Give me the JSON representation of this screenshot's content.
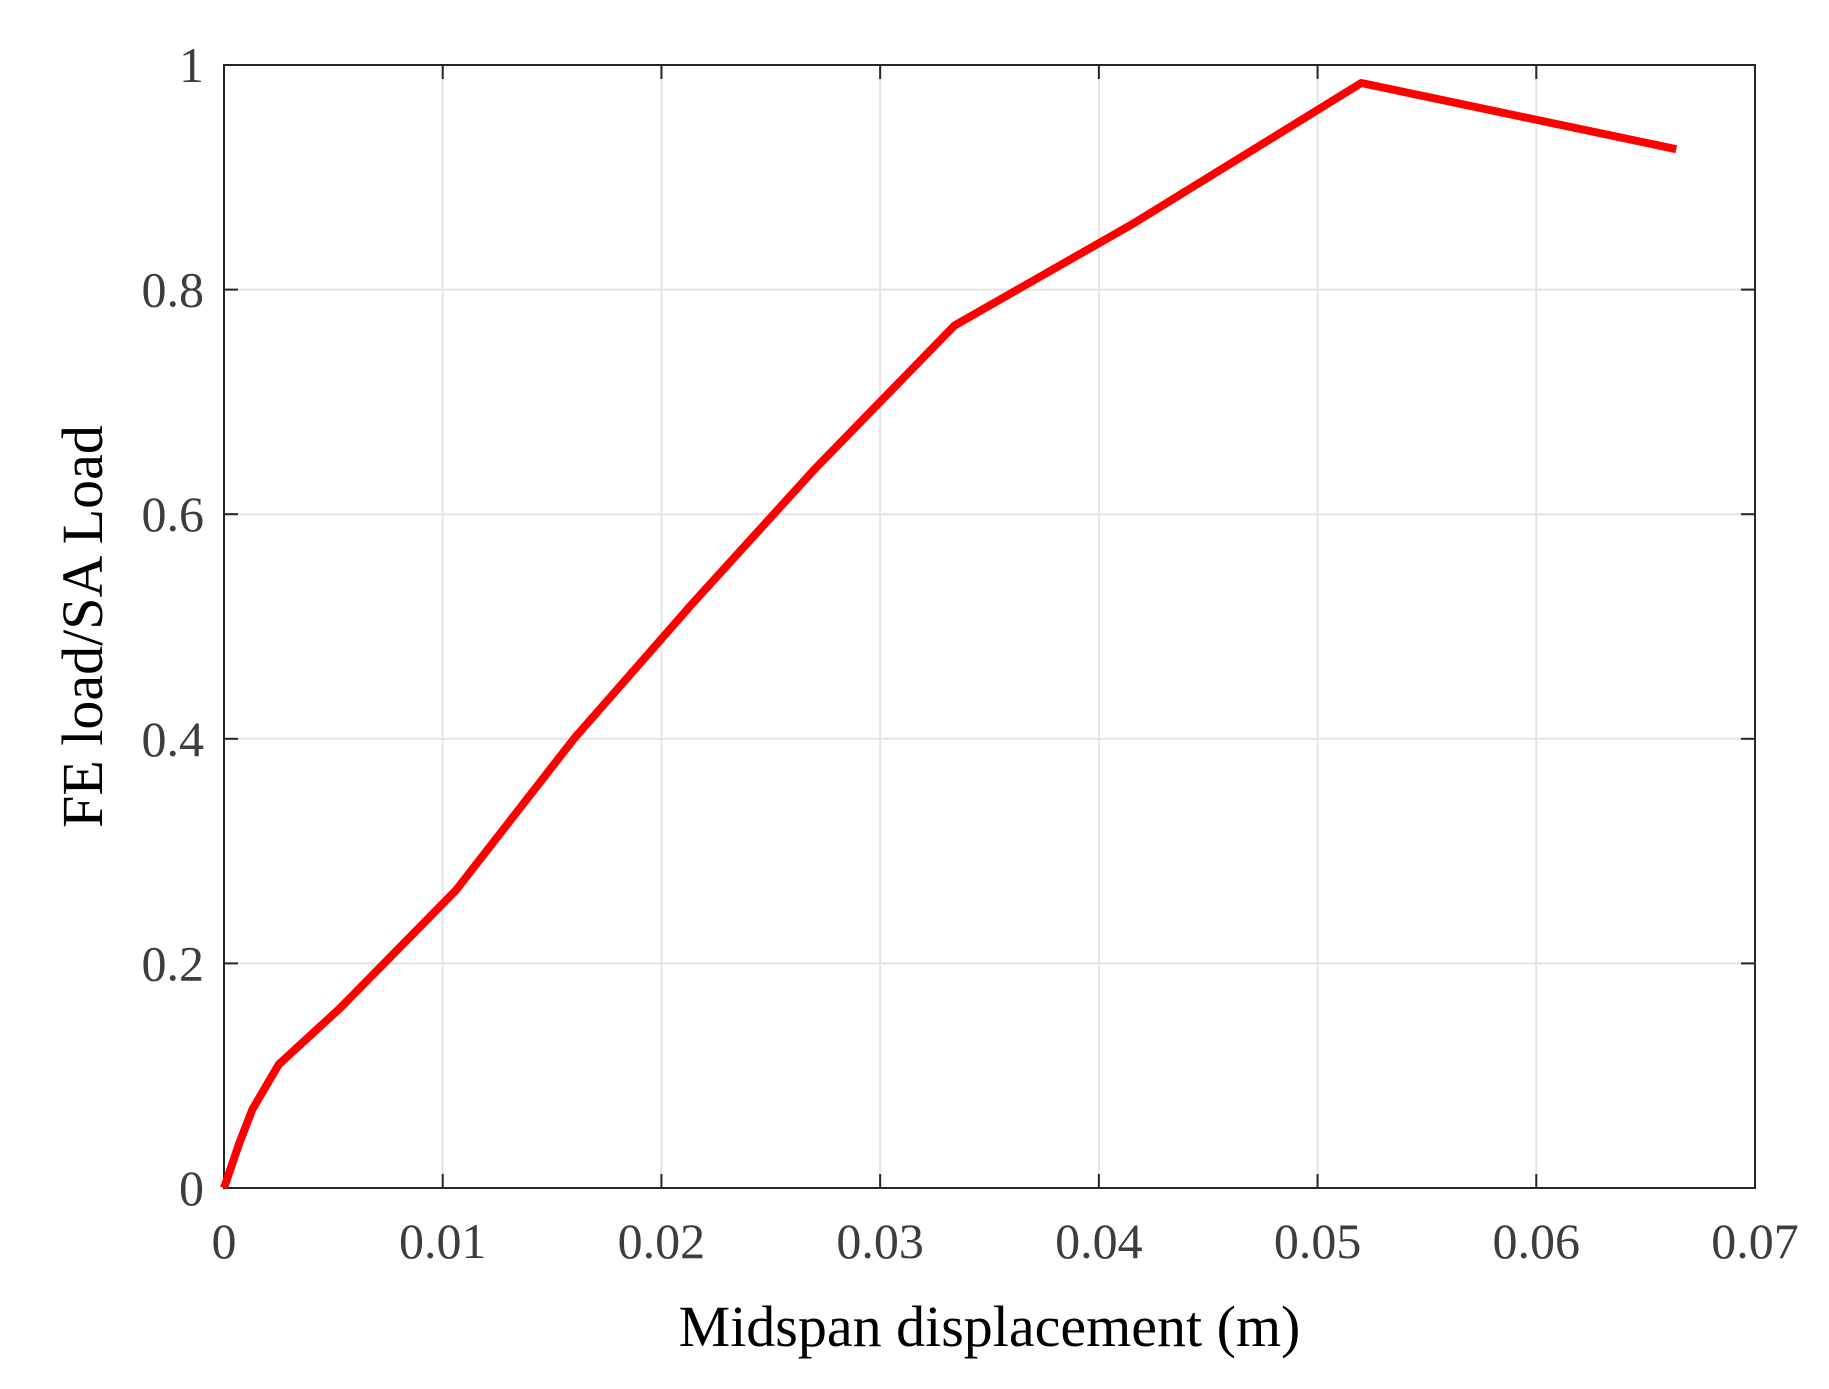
{
  "chart_data": {
    "type": "line",
    "xlabel": "Midspan displacement (m)",
    "ylabel": "FE load/SA Load",
    "xlim": [
      0,
      0.07
    ],
    "ylim": [
      0,
      1
    ],
    "x_ticks": [
      0,
      0.01,
      0.02,
      0.03,
      0.04,
      0.05,
      0.06,
      0.07
    ],
    "x_tick_labels": [
      "0",
      "0.01",
      "0.02",
      "0.03",
      "0.04",
      "0.05",
      "0.06",
      "0.07"
    ],
    "y_ticks": [
      0,
      0.2,
      0.4,
      0.6,
      0.8,
      1
    ],
    "y_tick_labels": [
      "0",
      "0.2",
      "0.4",
      "0.6",
      "0.8",
      "1"
    ],
    "grid": true,
    "line_color": "#ff0000",
    "series": [
      {
        "x": [
          0,
          0.0007,
          0.0013,
          0.0025,
          0.0053,
          0.0106,
          0.016,
          0.0214,
          0.027,
          0.0334,
          0.0415,
          0.052,
          0.0664
        ],
        "y": [
          0,
          0.04,
          0.07,
          0.11,
          0.16,
          0.265,
          0.4,
          0.52,
          0.64,
          0.768,
          0.858,
          0.984,
          0.925
        ]
      }
    ]
  }
}
